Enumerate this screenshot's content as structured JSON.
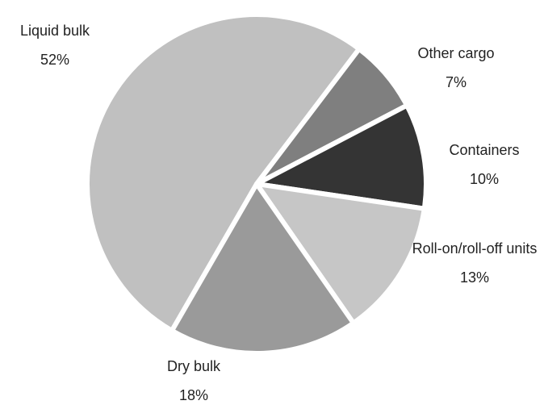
{
  "chart_data": {
    "type": "pie",
    "categories": [
      "Liquid bulk",
      "Other cargo",
      "Containers",
      "Roll-on/roll-off units",
      "Dry bulk"
    ],
    "values": [
      52,
      7,
      10,
      13,
      18
    ],
    "value_labels": [
      "52%",
      "7%",
      "10%",
      "13%",
      "18%"
    ],
    "colors": [
      "#c0c0c0",
      "#7f7f7f",
      "#343434",
      "#c6c6c6",
      "#9a9a9a"
    ]
  }
}
